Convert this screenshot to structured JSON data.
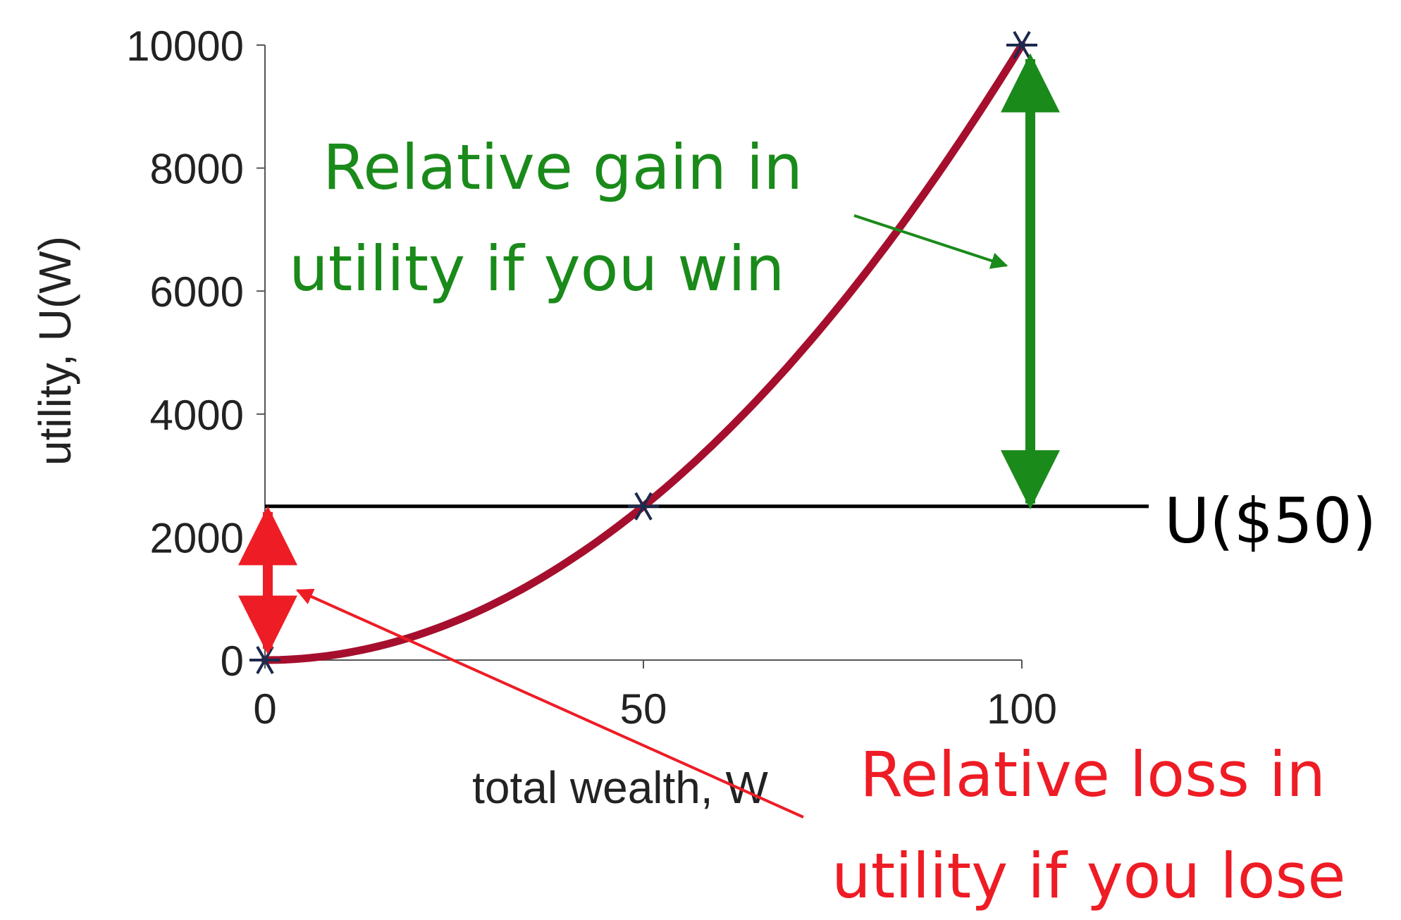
{
  "chart_data": {
    "type": "line",
    "xlabel": "total wealth, W",
    "ylabel": "utility, U(W)",
    "xlim": [
      0,
      120
    ],
    "ylim": [
      0,
      10000
    ],
    "x_ticks": [
      0,
      50,
      100
    ],
    "y_ticks": [
      0,
      2000,
      4000,
      6000,
      8000,
      10000
    ],
    "grid": false,
    "curve": {
      "function": "U(W) = W^2",
      "x": [
        0,
        10,
        20,
        30,
        40,
        50,
        60,
        70,
        80,
        90,
        100
      ],
      "y": [
        0,
        100,
        400,
        900,
        1600,
        2500,
        3600,
        4900,
        6400,
        8100,
        10000
      ]
    },
    "markers": {
      "x": [
        0,
        50,
        100
      ],
      "y": [
        0,
        2500,
        10000
      ]
    },
    "reference_line": {
      "y": 2500,
      "label": "U($50)"
    },
    "annotations": [
      {
        "text_lines": [
          "Relative gain in",
          "utility if you win"
        ],
        "color": "#1a8a1a",
        "arrow_from": 2500,
        "arrow_to": 10000,
        "arrow_x": 100
      },
      {
        "text_lines": [
          "Relative loss in",
          "utility if you lose"
        ],
        "color": "#ee1c25",
        "arrow_from": 0,
        "arrow_to": 2500,
        "arrow_x": 0
      }
    ],
    "colors": {
      "curve": "#a50f2d",
      "markers": "#1c2a4d",
      "reference_line": "#000000",
      "gain": "#1a8a1a",
      "loss": "#ee1c25"
    }
  }
}
